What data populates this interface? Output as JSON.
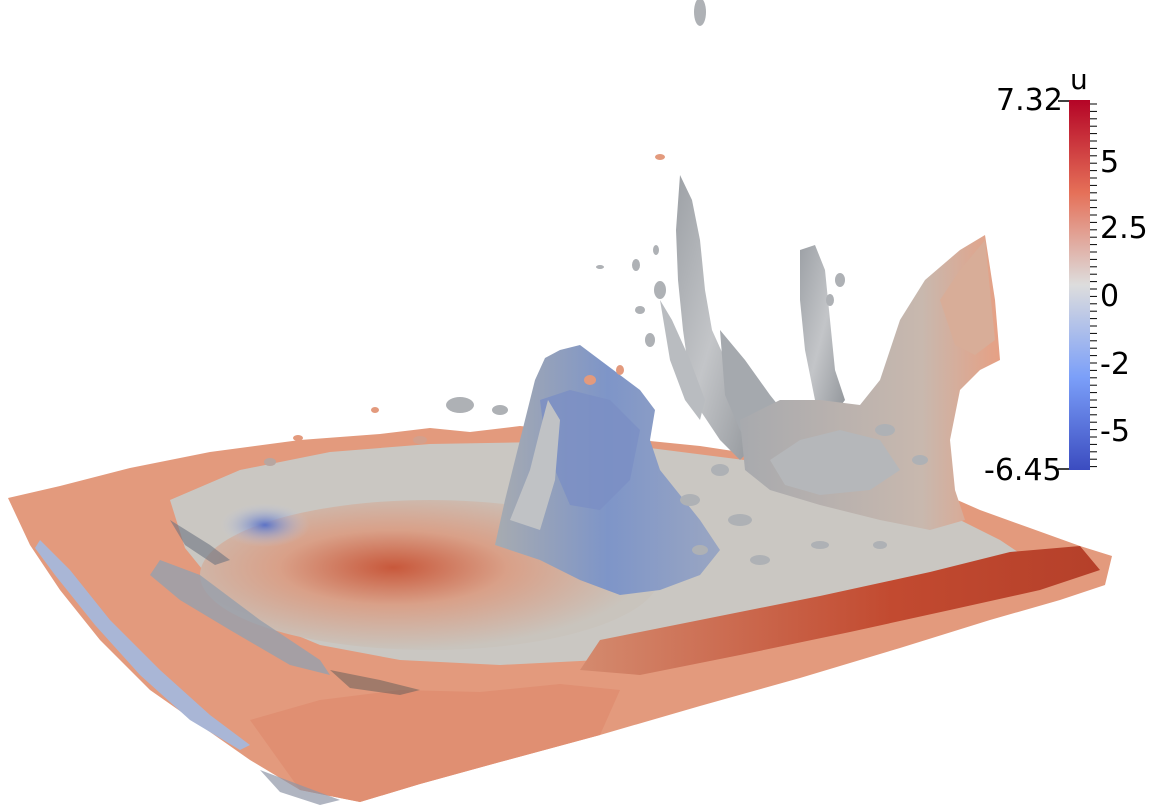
{
  "scene": {
    "description_colors": {
      "surface_warm": "#e8997a",
      "surface_red": "#c14a33",
      "surface_neutral": "#c9c9c9",
      "surface_blue": "#7a96d6",
      "surface_gray": "#a6a8ab",
      "background": "#ffffff"
    }
  },
  "colorbar": {
    "title": "u",
    "max_label": "7.32",
    "min_label": "-6.45",
    "tick_labels": [
      "5",
      "2.5",
      "0",
      "-2",
      "-5"
    ],
    "color_top": "#b40426",
    "color_mid": "#dddddd",
    "color_bottom": "#3b4cc0"
  }
}
